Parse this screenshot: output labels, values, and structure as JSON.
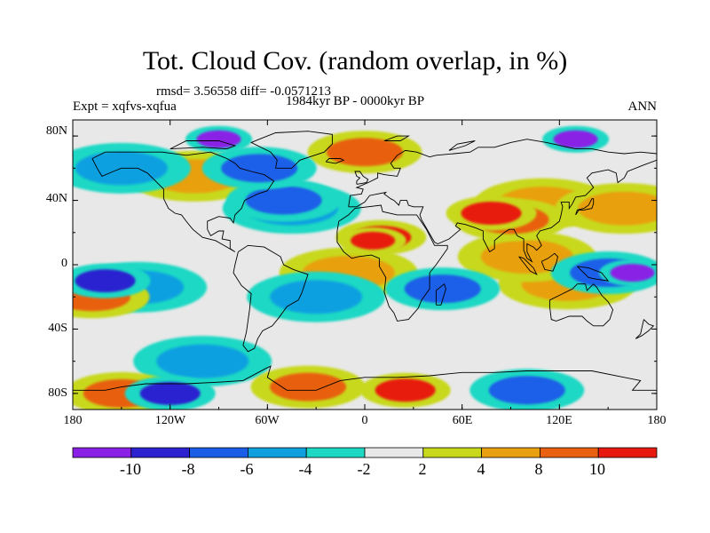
{
  "header": {
    "title": "Tot. Cloud Cov. (random overlap, in %)",
    "stats": "rmsd= 3.56558 diff= -0.0571213",
    "period": "1984kyr BP - 0000kyr BP",
    "expt": "Expt = xqfvs-xqfua",
    "season": "ANN"
  },
  "map": {
    "lat_ticks": [
      "80N",
      "40N",
      "0",
      "40S",
      "80S"
    ],
    "lon_ticks": [
      "180",
      "120W",
      "60W",
      "0",
      "60E",
      "120E",
      "180"
    ],
    "background_color": "#e8e8e8",
    "coastline_color": "#000000"
  },
  "colorbar": {
    "labels": [
      "-10",
      "-8",
      "-6",
      "-4",
      "-2",
      "2",
      "4",
      "8",
      "10"
    ],
    "colors": [
      "#8a20e6",
      "#2c22d0",
      "#1a5ee8",
      "#10a0e0",
      "#1ed8c4",
      "#e8e8e8",
      "#c8d81a",
      "#e8a010",
      "#e86010",
      "#e81a10"
    ]
  },
  "features": {
    "positive_regions": [
      {
        "name": "sahara",
        "level": 4,
        "lon": 10,
        "lat": 17
      },
      {
        "name": "sahara-core",
        "level": 5,
        "lon": 5,
        "lat": 15
      },
      {
        "name": "india-china",
        "level": 3,
        "lon": 90,
        "lat": 28
      },
      {
        "name": "tibet",
        "level": 4,
        "lon": 78,
        "lat": 32
      },
      {
        "name": "east-asia",
        "level": 2,
        "lon": 110,
        "lat": 38
      },
      {
        "name": "north-pacific-band",
        "level": 2,
        "lon": 160,
        "lat": 35
      },
      {
        "name": "south-pacific-warm",
        "level": 3,
        "lon": -168,
        "lat": -20
      },
      {
        "name": "aus-north",
        "level": 2,
        "lon": 125,
        "lat": -12
      },
      {
        "name": "se-asia",
        "level": 2,
        "lon": 100,
        "lat": 5
      },
      {
        "name": "south-atlantic-ring",
        "level": 2,
        "lon": -10,
        "lat": -5
      },
      {
        "name": "north-america",
        "level": 2,
        "lon": -105,
        "lat": 55
      },
      {
        "name": "antarctic-warm-1",
        "level": 4,
        "lon": 25,
        "lat": -78
      },
      {
        "name": "antarctic-warm-2",
        "level": 3,
        "lon": -35,
        "lat": -76
      },
      {
        "name": "antarctic-warm-3",
        "level": 3,
        "lon": -150,
        "lat": -80
      },
      {
        "name": "arctic-warm",
        "level": 3,
        "lon": 0,
        "lat": 70
      }
    ],
    "negative_regions": [
      {
        "name": "pacific-band",
        "level": -2,
        "lon": -140,
        "lat": -14
      },
      {
        "name": "pacific-band-core",
        "level": -4,
        "lon": -160,
        "lat": -10
      },
      {
        "name": "west-pacific",
        "level": -3,
        "lon": 150,
        "lat": -5
      },
      {
        "name": "west-pacific-core",
        "level": -5,
        "lon": 165,
        "lat": -5
      },
      {
        "name": "north-atlantic",
        "level": -2,
        "lon": -45,
        "lat": 35
      },
      {
        "name": "north-atlantic-core",
        "level": -3,
        "lon": -50,
        "lat": 40
      },
      {
        "name": "arctic-canada",
        "level": -5,
        "lon": -90,
        "lat": 78
      },
      {
        "name": "arctic-siberia",
        "level": -5,
        "lon": 130,
        "lat": 78
      },
      {
        "name": "labrador",
        "level": -3,
        "lon": -65,
        "lat": 60
      },
      {
        "name": "north-pacific",
        "level": -2,
        "lon": -150,
        "lat": 60
      },
      {
        "name": "south-atlantic",
        "level": -2,
        "lon": -30,
        "lat": -20
      },
      {
        "name": "south-ocean-1",
        "level": -2,
        "lon": -100,
        "lat": -60
      },
      {
        "name": "antarctic-cool-1",
        "level": -4,
        "lon": -120,
        "lat": -80
      },
      {
        "name": "antarctic-cool-2",
        "level": -3,
        "lon": 100,
        "lat": -78
      },
      {
        "name": "madagascar",
        "level": -3,
        "lon": 48,
        "lat": -15
      }
    ]
  }
}
